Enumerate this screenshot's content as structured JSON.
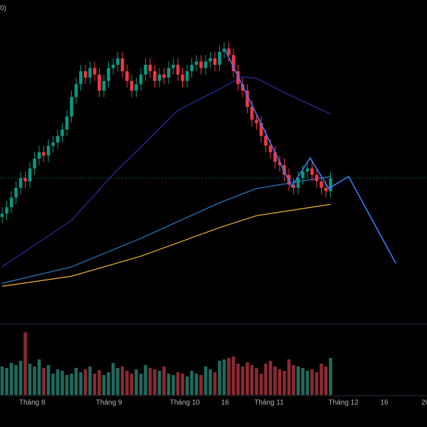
{
  "chart_data": {
    "type": "candlestick",
    "title": "0)",
    "xlim": [
      -0.46,
      91.85
    ],
    "ylim": [
      0,
      100
    ],
    "xticks": [
      {
        "value": 6.5,
        "label": "Tháng 8"
      },
      {
        "value": 23.1,
        "label": "Tháng 9"
      },
      {
        "value": 39.5,
        "label": "Tháng 10"
      },
      {
        "value": 48.2,
        "label": "16"
      },
      {
        "value": 57.7,
        "label": "Tháng 11"
      },
      {
        "value": 73.8,
        "label": "Tháng 12"
      },
      {
        "value": 82.6,
        "label": "16"
      },
      {
        "value": 91.5,
        "label": "20"
      }
    ],
    "up_color": "#089981",
    "down_color": "#f23645",
    "open": [
      33,
      34,
      36,
      39,
      42,
      45,
      44,
      48,
      51,
      53,
      52,
      55,
      56,
      58,
      60,
      64,
      70,
      74,
      78,
      76,
      79,
      77,
      72,
      75,
      79,
      80,
      82,
      78,
      75,
      72,
      74,
      77,
      80,
      78,
      75,
      77,
      76,
      79,
      80,
      77,
      75,
      78,
      80,
      81,
      79,
      81,
      82,
      80,
      84,
      85,
      83,
      78,
      74,
      72,
      67,
      63,
      62,
      58,
      55,
      53,
      50,
      49,
      46,
      43,
      42,
      45,
      47,
      48,
      46,
      44,
      42,
      41
    ],
    "high": [
      36,
      38,
      41,
      44,
      47,
      47,
      50,
      53,
      55,
      55,
      57,
      58,
      60,
      62,
      66,
      72,
      76,
      80,
      80,
      81,
      81,
      79,
      77,
      81,
      82,
      84,
      84,
      80,
      77,
      76,
      79,
      82,
      82,
      80,
      79,
      79,
      81,
      82,
      82,
      79,
      80,
      82,
      83,
      83,
      83,
      84,
      84,
      86,
      87,
      87,
      85,
      80,
      76,
      74,
      69,
      65,
      64,
      60,
      57,
      55,
      52,
      51,
      48,
      45,
      47,
      49,
      50,
      50,
      48,
      46,
      44,
      47
    ],
    "low": [
      31,
      32,
      34,
      37,
      40,
      42,
      42,
      46,
      49,
      50,
      50,
      53,
      54,
      56,
      58,
      62,
      68,
      72,
      74,
      74,
      75,
      70,
      70,
      73,
      77,
      78,
      76,
      73,
      70,
      70,
      72,
      75,
      76,
      73,
      73,
      74,
      74,
      77,
      75,
      73,
      73,
      76,
      78,
      77,
      77,
      79,
      78,
      78,
      82,
      81,
      76,
      72,
      70,
      65,
      61,
      60,
      56,
      53,
      51,
      48,
      47,
      44,
      41,
      40,
      40,
      43,
      45,
      44,
      42,
      40,
      39,
      39
    ],
    "close": [
      34,
      36,
      39,
      42,
      45,
      44,
      48,
      51,
      53,
      52,
      55,
      56,
      58,
      60,
      64,
      70,
      74,
      78,
      76,
      79,
      77,
      72,
      75,
      79,
      80,
      82,
      78,
      75,
      72,
      74,
      77,
      80,
      78,
      75,
      77,
      76,
      79,
      80,
      77,
      75,
      78,
      80,
      81,
      79,
      81,
      82,
      80,
      84,
      85,
      83,
      78,
      74,
      72,
      67,
      63,
      62,
      58,
      55,
      53,
      50,
      49,
      46,
      43,
      42,
      45,
      47,
      48,
      46,
      44,
      42,
      41,
      45
    ],
    "volume": {
      "ylim": [
        0,
        100
      ],
      "up_color": "#1e6b5e",
      "down_color": "#8c2a33",
      "values": [
        40,
        38,
        45,
        42,
        48,
        88,
        44,
        40,
        50,
        38,
        42,
        30,
        36,
        34,
        28,
        30,
        38,
        32,
        36,
        40,
        30,
        35,
        28,
        32,
        45,
        38,
        40,
        34,
        30,
        36,
        30,
        42,
        38,
        36,
        34,
        40,
        30,
        28,
        32,
        30,
        26,
        34,
        30,
        28,
        40,
        36,
        32,
        48,
        50,
        52,
        54,
        44,
        40,
        46,
        42,
        38,
        30,
        44,
        48,
        40,
        36,
        34,
        50,
        42,
        40,
        38,
        34,
        36,
        32,
        44,
        40,
        52
      ]
    },
    "lines": [
      {
        "color": "#2a2fa8",
        "x": [
          0,
          15,
          24,
          38,
          47,
          52,
          55,
          61,
          71
        ],
        "values": [
          17.6,
          31.9,
          46.2,
          65.9,
          72.5,
          76.3,
          75.8,
          71.4,
          64.8
        ]
      },
      {
        "color": "#2a7fc9",
        "x": [
          0,
          15,
          30,
          47,
          55,
          71
        ],
        "values": [
          12.5,
          17.6,
          26.4,
          37.4,
          41.8,
          45.5
        ]
      },
      {
        "color": "#f5b52e",
        "x": [
          0,
          15,
          30,
          47,
          55,
          71
        ],
        "values": [
          11.6,
          14.7,
          20.9,
          29.7,
          33.4,
          36.9
        ]
      }
    ],
    "drawing": {
      "color": "#3d7bf5",
      "x": [
        48.2,
        62.6,
        66.6,
        70.6,
        74.9,
        85.1
      ],
      "values": [
        84.6,
        42.4,
        51.2,
        41.8,
        45.5,
        18.7
      ]
    }
  }
}
